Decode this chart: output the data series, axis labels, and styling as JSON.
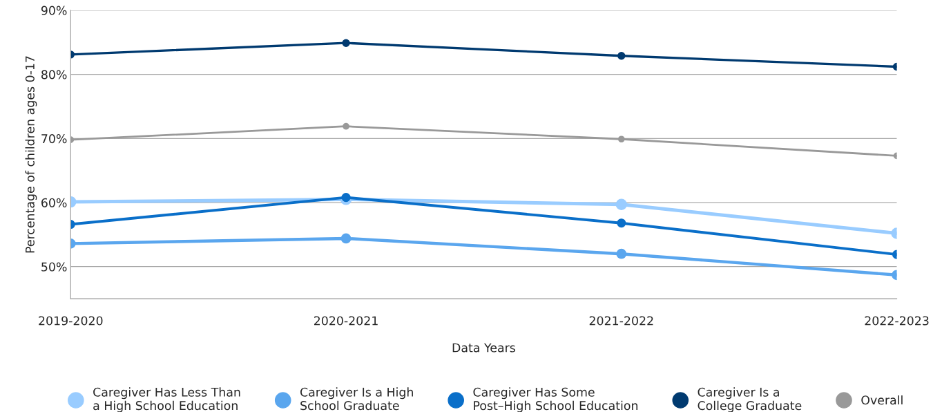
{
  "chart_data": {
    "type": "line",
    "xlabel": "Data Years",
    "ylabel": "Percentage of children ages 0-17",
    "categories": [
      "2019-2020",
      "2020-2021",
      "2021-2022",
      "2022-2023"
    ],
    "series": [
      {
        "name": "Caregiver Has Less Than\na High School Education",
        "color": "#99ccff",
        "values": [
          60.1,
          60.5,
          59.7,
          55.2
        ]
      },
      {
        "name": "Caregiver Is a High\nSchool Graduate",
        "color": "#5aa6ee",
        "values": [
          53.6,
          54.4,
          52.0,
          48.7
        ]
      },
      {
        "name": "Caregiver Has Some\nPost–High School Education",
        "color": "#0a6fc9",
        "values": [
          56.6,
          60.8,
          56.8,
          51.9
        ]
      },
      {
        "name": "Caregiver Is a\nCollege Graduate",
        "color": "#003a70",
        "values": [
          83.1,
          84.9,
          82.9,
          81.2
        ]
      },
      {
        "name": "Overall",
        "color": "#999999",
        "values": [
          69.8,
          71.9,
          69.9,
          67.3
        ]
      }
    ],
    "ylim": [
      45,
      90
    ],
    "yticks": [
      {
        "value": 50,
        "label": "50%"
      },
      {
        "value": 60,
        "label": "60%"
      },
      {
        "value": 70,
        "label": "70%"
      },
      {
        "value": 80,
        "label": "80%"
      },
      {
        "value": 90,
        "label": "90%"
      }
    ],
    "grid": "y",
    "legend": "bottom",
    "marker": "circle",
    "line_style": "solid"
  }
}
